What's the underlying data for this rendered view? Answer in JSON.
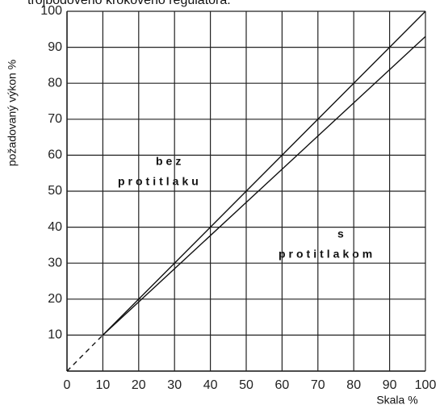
{
  "chart_data": {
    "type": "line",
    "title": "trojbodového krokového regulátora.",
    "xlabel": "Skala %",
    "ylabel": "požadovaný výkon %",
    "xlim": [
      0,
      100
    ],
    "xticks": [
      0,
      10,
      20,
      30,
      40,
      50,
      60,
      70,
      80,
      90,
      100
    ],
    "ylim": [
      0,
      100
    ],
    "yticks": [
      10,
      20,
      30,
      40,
      50,
      60,
      70,
      80,
      90,
      100
    ],
    "grid": true,
    "series": [
      {
        "name": "bez protitlaku",
        "color": "#111111",
        "x": [
          10,
          100
        ],
        "values": [
          10,
          100
        ]
      },
      {
        "name": "s protitlakom",
        "color": "#111111",
        "x": [
          10,
          100
        ],
        "values": [
          10,
          93
        ]
      },
      {
        "color": "#111111",
        "dashed": true,
        "x": [
          0,
          10
        ],
        "values": [
          0,
          10
        ]
      }
    ],
    "annotations": [
      "bez",
      "protitlaku",
      "s",
      "protitlakom"
    ]
  }
}
